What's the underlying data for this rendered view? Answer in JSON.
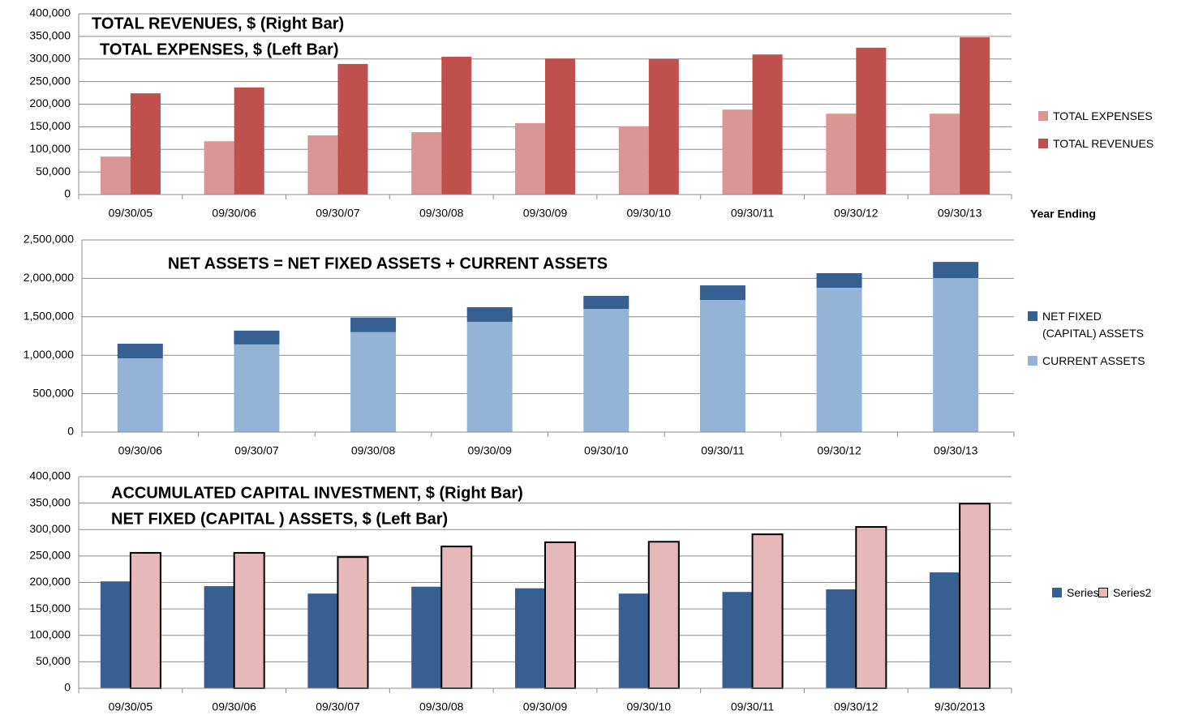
{
  "chart_data": [
    {
      "type": "bar",
      "title": "TOTAL REVENUES, $ (Right Bar)",
      "subtitle": "TOTAL EXPENSES, $ (Left Bar)",
      "xlabel": "Year Ending",
      "categories": [
        "09/30/05",
        "09/30/06",
        "09/30/07",
        "09/30/08",
        "09/30/09",
        "09/30/10",
        "09/30/11",
        "09/30/12",
        "09/30/13"
      ],
      "series": [
        {
          "name": "TOTAL  EXPENSES",
          "color": "#d99694",
          "values": [
            84000,
            118000,
            131000,
            138000,
            158000,
            151000,
            188000,
            179000,
            179000
          ]
        },
        {
          "name": "TOTAL  REVENUES",
          "color": "#c0504d",
          "values": [
            224000,
            237000,
            289000,
            305000,
            301000,
            300000,
            310000,
            325000,
            348000
          ]
        }
      ],
      "ylim": [
        0,
        400000
      ],
      "yticks": [
        0,
        {
          "value": 50000,
          "label": "50,000"
        },
        {
          "value": 100000,
          "label": "100,000"
        },
        {
          "value": 150000,
          "label": "150,000"
        },
        {
          "value": 200000,
          "label": "200,000"
        },
        {
          "value": 250000,
          "label": "250,000"
        },
        {
          "value": 300000,
          "label": "300,000"
        },
        {
          "value": 350000,
          "label": "350,000"
        },
        {
          "value": 400000,
          "label": "400,000"
        }
      ],
      "grid": true,
      "stacked": false,
      "legend": "right"
    },
    {
      "type": "bar",
      "title": "NET ASSETS = NET FIXED ASSETS + CURRENT ASSETS",
      "categories": [
        "09/30/06",
        "09/30/07",
        "09/30/08",
        "09/30/09",
        "09/30/10",
        "09/30/11",
        "09/30/12",
        "09/30/13"
      ],
      "series": [
        {
          "name": "CURRENT ASSETS",
          "color": "#95b3d7",
          "values": [
            960000,
            1140000,
            1300000,
            1435000,
            1603000,
            1719000,
            1878000,
            2004000
          ]
        },
        {
          "name": "NET FIXED (CAPITAL) ASSETS",
          "color": "#376092",
          "values": [
            190000,
            180000,
            190000,
            190000,
            170000,
            190000,
            190000,
            210000
          ]
        }
      ],
      "ylim": [
        0,
        2500000
      ],
      "yticks": [
        0,
        {
          "value": 500000,
          "label": "500,000"
        },
        {
          "value": 1000000,
          "label": "1,000,000"
        },
        {
          "value": 1500000,
          "label": "1,500,000"
        },
        {
          "value": 2000000,
          "label": "2,000,000"
        },
        {
          "value": 2500000,
          "label": "2,500,000"
        }
      ],
      "grid": true,
      "stacked": true,
      "legend": "right"
    },
    {
      "type": "bar",
      "title": "ACCUMULATED CAPITAL INVESTMENT, $ (Right Bar)",
      "subtitle": "NET FIXED (CAPITAL ) ASSETS, $ (Left Bar)",
      "categories": [
        "09/30/05",
        "09/30/06",
        "09/30/07",
        "09/30/08",
        "09/30/09",
        "09/30/10",
        "09/30/11",
        "09/30/12",
        "9/30/2013"
      ],
      "series": [
        {
          "name": "Series1",
          "color": "#376092",
          "values": [
            202000,
            193000,
            179000,
            192000,
            189000,
            179000,
            182000,
            187000,
            219000
          ]
        },
        {
          "name": "Series2",
          "color": "#e6b9b8",
          "edgecolor": "#000000",
          "values": [
            256000,
            256000,
            248000,
            268000,
            276000,
            277000,
            291000,
            305000,
            349000
          ]
        }
      ],
      "ylim": [
        0,
        400000
      ],
      "yticks": [
        0,
        {
          "value": 50000,
          "label": "50,000"
        },
        {
          "value": 100000,
          "label": "100,000"
        },
        {
          "value": 150000,
          "label": "150,000"
        },
        {
          "value": 200000,
          "label": "200,000"
        },
        {
          "value": 250000,
          "label": "250,000"
        },
        {
          "value": 300000,
          "label": "300,000"
        },
        {
          "value": 350000,
          "label": "350,000"
        },
        {
          "value": 400000,
          "label": "400,000"
        }
      ],
      "grid": true,
      "stacked": false,
      "legend": "right"
    }
  ]
}
